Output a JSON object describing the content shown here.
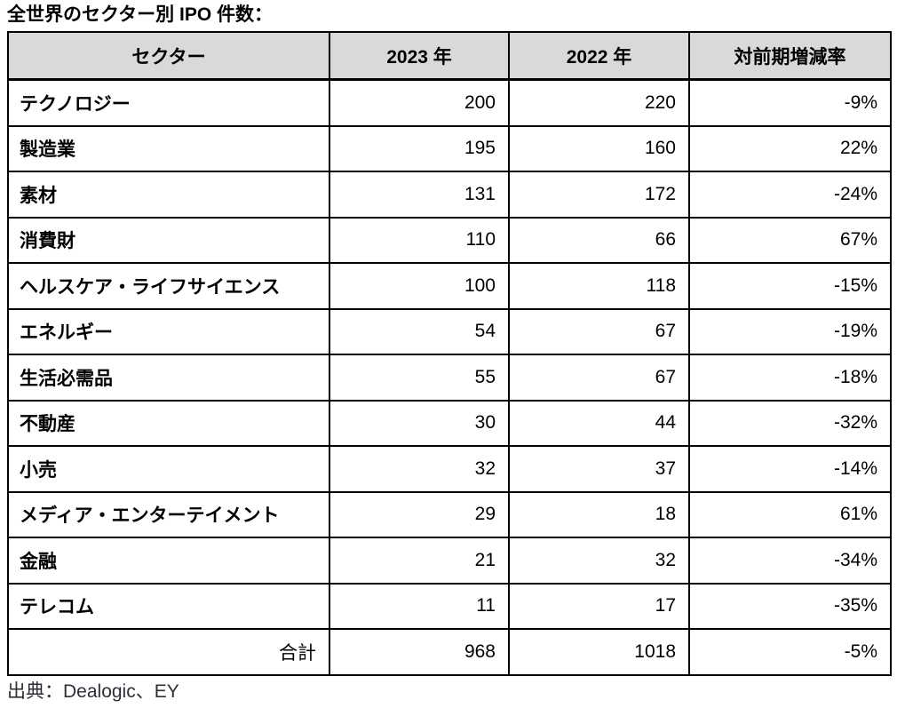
{
  "title": "全世界のセクター別 IPO 件数：",
  "source": "出典：Dealogic、EY",
  "colors": {
    "header_background": "#d9d9d9",
    "border": "#000000",
    "text": "#000000",
    "source_text": "#2e2e38"
  },
  "table": {
    "headers": [
      "セクター",
      "2023 年",
      "2022 年",
      "対前期増減率"
    ],
    "rows": [
      {
        "sector": "テクノロジー",
        "y2023": "200",
        "y2022": "220",
        "change": "-9%"
      },
      {
        "sector": "製造業",
        "y2023": "195",
        "y2022": "160",
        "change": "22%"
      },
      {
        "sector": "素材",
        "y2023": "131",
        "y2022": "172",
        "change": "-24%"
      },
      {
        "sector": "消費財",
        "y2023": "110",
        "y2022": "66",
        "change": "67%"
      },
      {
        "sector": "ヘルスケア・ライフサイエンス",
        "y2023": "100",
        "y2022": "118",
        "change": "-15%"
      },
      {
        "sector": "エネルギー",
        "y2023": "54",
        "y2022": "67",
        "change": "-19%"
      },
      {
        "sector": "生活必需品",
        "y2023": "55",
        "y2022": "67",
        "change": "-18%"
      },
      {
        "sector": "不動産",
        "y2023": "30",
        "y2022": "44",
        "change": "-32%"
      },
      {
        "sector": "小売",
        "y2023": "32",
        "y2022": "37",
        "change": "-14%"
      },
      {
        "sector": "メディア・エンターテイメント",
        "y2023": "29",
        "y2022": "18",
        "change": "61%"
      },
      {
        "sector": "金融",
        "y2023": "21",
        "y2022": "32",
        "change": "-34%"
      },
      {
        "sector": "テレコム",
        "y2023": "11",
        "y2022": "17",
        "change": "-35%"
      }
    ],
    "total": {
      "label": "合計",
      "y2023": "968",
      "y2022": "1018",
      "change": "-5%"
    }
  },
  "chart_data": {
    "type": "table",
    "title": "全世界のセクター別 IPO 件数",
    "columns": [
      "セクター",
      "2023 年",
      "2022 年",
      "対前期増減率"
    ],
    "categories": [
      "テクノロジー",
      "製造業",
      "素材",
      "消費財",
      "ヘルスケア・ライフサイエンス",
      "エネルギー",
      "生活必需品",
      "不動産",
      "小売",
      "メディア・エンターテイメント",
      "金融",
      "テレコム"
    ],
    "series": [
      {
        "name": "2023 年",
        "values": [
          200,
          195,
          131,
          110,
          100,
          54,
          55,
          30,
          32,
          29,
          21,
          11
        ]
      },
      {
        "name": "2022 年",
        "values": [
          220,
          160,
          172,
          66,
          118,
          67,
          67,
          44,
          37,
          18,
          32,
          17
        ]
      },
      {
        "name": "対前期増減率",
        "values": [
          "-9%",
          "22%",
          "-24%",
          "67%",
          "-15%",
          "-19%",
          "-18%",
          "-32%",
          "-14%",
          "61%",
          "-34%",
          "-35%"
        ]
      }
    ],
    "totals": {
      "2023 年": 968,
      "2022 年": 1018,
      "対前期増減率": "-5%"
    },
    "source": "出典：Dealogic、EY"
  }
}
